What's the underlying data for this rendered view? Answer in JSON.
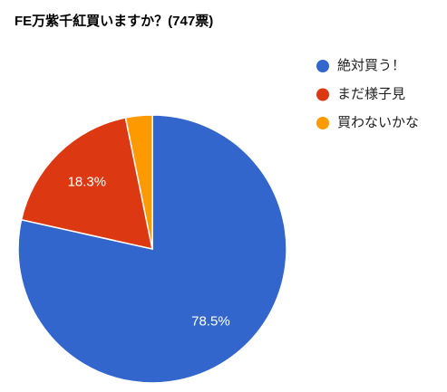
{
  "chart_data": {
    "type": "pie",
    "title": "FE万紫千紅買いますか？(747票)",
    "categories": [
      "絶対買う！",
      "まだ様子見",
      "買わないかな"
    ],
    "values": [
      78.5,
      18.3,
      3.2
    ],
    "value_labels": [
      "78.5%",
      "18.3%",
      null
    ],
    "colors": [
      "#3366cc",
      "#dc3912",
      "#ff9900"
    ],
    "legend": "right"
  }
}
